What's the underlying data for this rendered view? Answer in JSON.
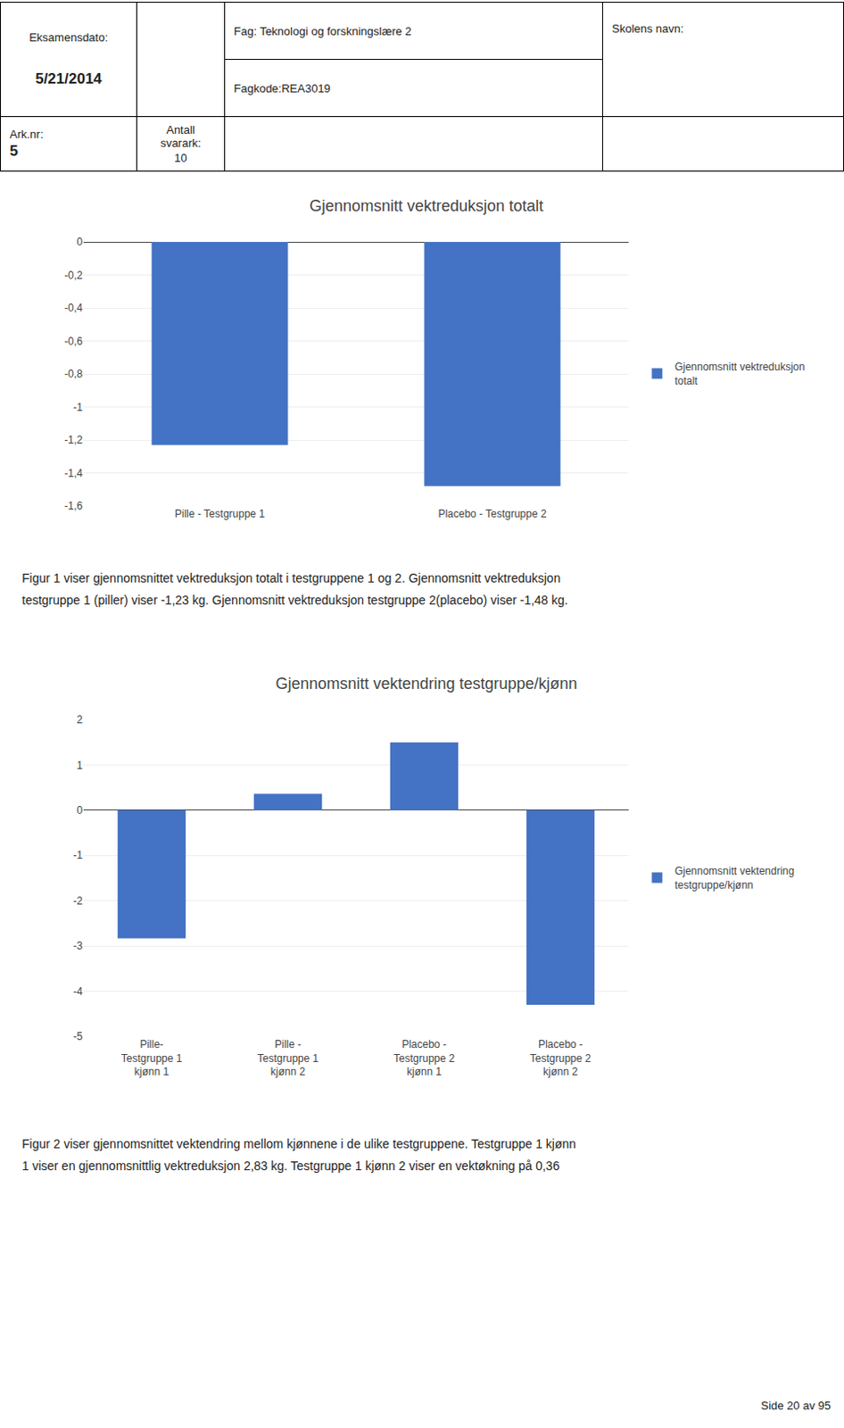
{
  "annotations": [
    "Eksamensdato:",
    "5/21/2014",
    "Fag: Teknologi og forskningslære 2",
    "Fagkode:REA3019",
    "Skolens navn:",
    "Ark.nr:",
    "5",
    "Antall\nsvarark:",
    "10",
    "Side 20 av 95"
  ],
  "chart_data": [
    {
      "type": "bar",
      "title": "Gjennomsnitt vektreduksjon totalt",
      "categories": [
        "Pille - Testgruppe 1",
        "Placebo - Testgruppe 2"
      ],
      "series": [
        {
          "name": "Gjennomsnitt vektreduksjon\ntotalt",
          "color": "#4472C4",
          "values": [
            -1.23,
            -1.48
          ]
        }
      ],
      "ylim": [
        -1.6,
        0.0
      ],
      "yticks": [
        0,
        {
          "value": -0.2,
          "label": "-0,2"
        },
        {
          "value": -0.4,
          "label": "-0,4"
        },
        {
          "value": -0.6,
          "label": "-0,6"
        },
        {
          "value": -0.8,
          "label": "-0,8"
        },
        -1,
        {
          "value": -1.2,
          "label": "-1,2"
        },
        {
          "value": -1.4,
          "label": "-1,4"
        },
        {
          "value": -1.6,
          "label": "-1,6"
        }
      ],
      "grid": true,
      "legend": "right",
      "annotations": [
        "Figur 1 viser gjennomsnittet vektreduksjon totalt i testgruppene 1 og 2. Gjennomsnitt vektreduksjon\ntestgruppe 1 (piller) viser -1,23 kg. Gjennomsnitt vektreduksjon testgruppe 2(placebo) viser -1,48 kg."
      ]
    },
    {
      "type": "bar",
      "title": "Gjennomsnitt vektendring testgruppe/kjønn",
      "categories": [
        "Pille-\nTestgruppe 1\nkjønn 1",
        "Pille -\nTestgruppe 1\nkjønn 2",
        "Placebo -\nTestgruppe 2\nkjønn 1",
        "Placebo -\nTestgruppe 2\nkjønn 2"
      ],
      "series": [
        {
          "name": "Gjennomsnitt vektendring\ntestgruppe/kjønn",
          "color": "#4472C4",
          "values": [
            -2.83,
            0.36,
            1.5,
            -4.3
          ]
        }
      ],
      "ylim": [
        -5,
        2
      ],
      "yticks": [
        2,
        1,
        0,
        -1,
        -2,
        -3,
        -4,
        -5
      ],
      "grid": true,
      "legend": "right",
      "annotations": [
        "Figur 2 viser gjennomsnittet vektendring mellom kjønnene i de ulike testgruppene. Testgruppe 1 kjønn\n1 viser en gjennomsnittlig vektreduksjon 2,83 kg. Testgruppe 1 kjønn 2 viser en vektøkning på 0,36"
      ]
    }
  ]
}
